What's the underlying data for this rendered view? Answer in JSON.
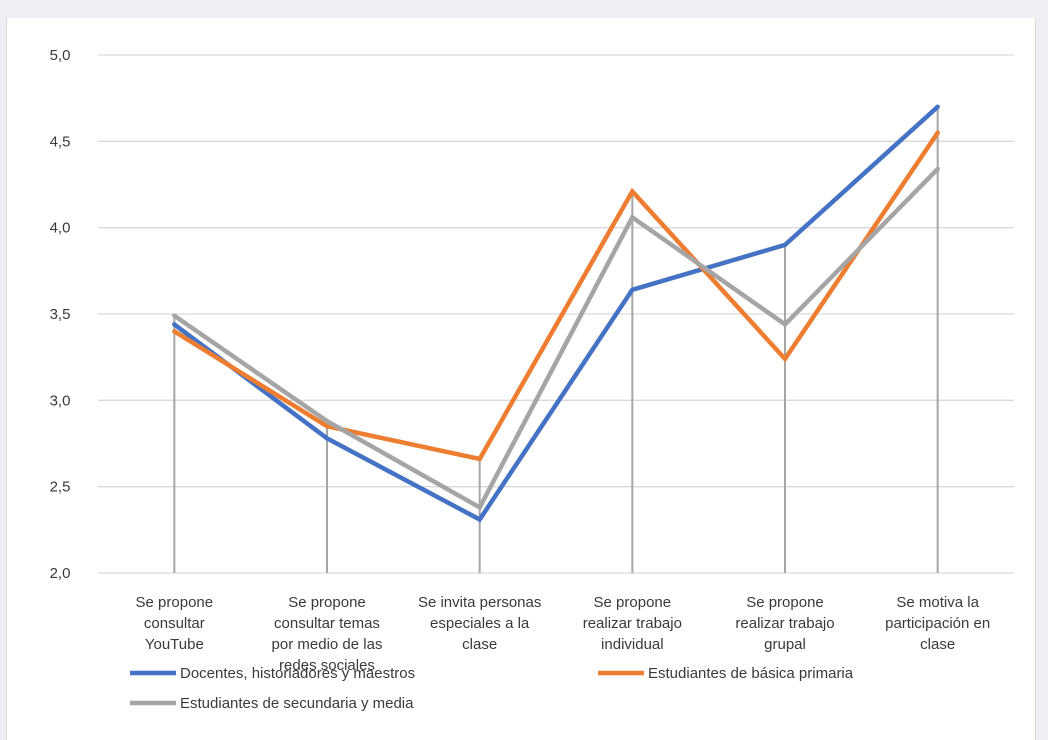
{
  "chart_data": {
    "type": "line",
    "title": "",
    "xlabel": "",
    "ylabel": "",
    "ylim": [
      2.0,
      5.0
    ],
    "yticks": [
      "2,0",
      "2,5",
      "3,0",
      "3,5",
      "4,0",
      "4,5",
      "5,0"
    ],
    "grid": true,
    "legend_position": "bottom",
    "categories": [
      [
        "Se propone",
        "consultar",
        "YouTube"
      ],
      [
        "Se propone",
        "consultar temas",
        "por medio de las",
        "redes sociales"
      ],
      [
        "Se invita personas",
        "especiales a la",
        "clase"
      ],
      [
        "Se propone",
        "realizar trabajo",
        "individual"
      ],
      [
        "Se propone",
        "realizar trabajo",
        "grupal"
      ],
      [
        "Se motiva la",
        "participación en",
        "clase"
      ]
    ],
    "series": [
      {
        "name": "Docentes, historiadores y maestros",
        "color": "#4472c4",
        "values": [
          3.44,
          2.78,
          2.31,
          3.64,
          3.9,
          4.7
        ]
      },
      {
        "name": "Estudiantes de básica primaria",
        "color": "#ed7d31",
        "values": [
          3.4,
          2.85,
          2.66,
          4.21,
          3.24,
          4.55
        ]
      },
      {
        "name": "Estudiantes de secundaria y media",
        "color": "#a5a5a5",
        "values": [
          3.49,
          2.88,
          2.38,
          4.06,
          3.44,
          4.34
        ]
      }
    ]
  }
}
